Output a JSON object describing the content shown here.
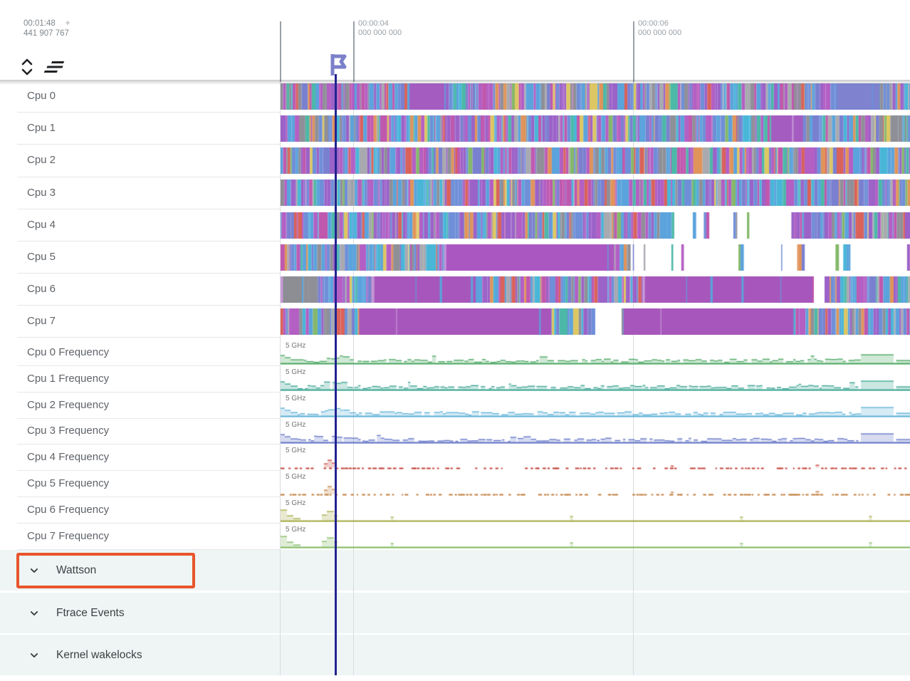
{
  "header": {
    "selection_time": "00:01:48",
    "selection_plus": "+",
    "selection_ns": "441 907 767",
    "ticks": [
      {
        "time": "00:00:04",
        "ns": "000 000 000"
      },
      {
        "time": "00:00:06",
        "ns": "000 000 000"
      }
    ]
  },
  "cpu_tracks": [
    {
      "label": "Cpu 0",
      "seed": 11,
      "pattern": {
        "blocks": [
          {
            "s": 0.205,
            "e": 0.262,
            "color": "#a55cc0"
          },
          {
            "s": 0.884,
            "e": 0.952,
            "color": "#7e82cf"
          }
        ],
        "sparse": [],
        "gaps": []
      }
    },
    {
      "label": "Cpu 1",
      "seed": 23,
      "pattern": {
        "blocks": [
          {
            "s": 0.78,
            "e": 0.83,
            "color": "#a55cc0"
          }
        ],
        "sparse": [],
        "gaps": []
      }
    },
    {
      "label": "Cpu 2",
      "seed": 37,
      "pattern": {
        "blocks": [],
        "sparse": [],
        "gaps": []
      }
    },
    {
      "label": "Cpu 3",
      "seed": 41,
      "pattern": {
        "blocks": [],
        "sparse": [],
        "gaps": []
      }
    },
    {
      "label": "Cpu 4",
      "seed": 53,
      "pattern": {
        "blocks": [],
        "sparse": [
          {
            "s": 0.615,
            "e": 0.83
          }
        ],
        "gaps": []
      }
    },
    {
      "label": "Cpu 5",
      "seed": 67,
      "pattern": {
        "blocks": [
          {
            "s": 0.26,
            "e": 0.53,
            "color": "#ab57c2"
          }
        ],
        "sparse": [
          {
            "s": 0.555,
            "e": 0.995
          }
        ],
        "gaps": []
      }
    },
    {
      "label": "Cpu 6",
      "seed": 79,
      "pattern": {
        "blocks": [
          {
            "s": 0.0,
            "e": 0.034,
            "color": "#8d8d94"
          },
          {
            "s": 0.145,
            "e": 0.31,
            "color": "#a757bb"
          },
          {
            "s": 0.575,
            "e": 0.845,
            "color": "#a757bb"
          }
        ],
        "sparse": [],
        "gaps": [
          {
            "s": 0.847,
            "e": 0.864
          }
        ]
      }
    },
    {
      "label": "Cpu 7",
      "seed": 97,
      "pattern": {
        "blocks": [
          {
            "s": 0.125,
            "e": 0.43,
            "color": "#a757bb"
          },
          {
            "s": 0.545,
            "e": 0.815,
            "color": "#a757bb"
          }
        ],
        "sparse": [],
        "gaps": [
          {
            "s": 0.5,
            "e": 0.542
          }
        ]
      }
    }
  ],
  "freq_tracks": [
    {
      "label": "Cpu 0 Frequency",
      "scale_label": "5 GHz",
      "color": "#44a35c",
      "style": "busy",
      "seed": 5
    },
    {
      "label": "Cpu 1 Frequency",
      "scale_label": "5 GHz",
      "color": "#31a08c",
      "style": "busy",
      "seed": 6
    },
    {
      "label": "Cpu 2 Frequency",
      "scale_label": "5 GHz",
      "color": "#58aed6",
      "style": "busy",
      "seed": 7
    },
    {
      "label": "Cpu 3 Frequency",
      "scale_label": "5 GHz",
      "color": "#5d6fc4",
      "style": "busy",
      "seed": 8
    },
    {
      "label": "Cpu 4 Frequency",
      "scale_label": "5 GHz",
      "color": "#c4443c",
      "style": "flat",
      "seed": 9
    },
    {
      "label": "Cpu 5 Frequency",
      "scale_label": "5 GHz",
      "color": "#c07e3e",
      "style": "flat",
      "seed": 10
    },
    {
      "label": "Cpu 6 Frequency",
      "scale_label": "5 GHz",
      "color": "#a2a83e",
      "style": "steps",
      "seed": 11
    },
    {
      "label": "Cpu 7 Frequency",
      "scale_label": "5 GHz",
      "color": "#7fb75e",
      "style": "steps",
      "seed": 12
    }
  ],
  "groups": [
    {
      "label": "Wattson",
      "highlighted": true
    },
    {
      "label": "Ftrace Events",
      "highlighted": false
    },
    {
      "label": "Kernel wakelocks",
      "highlighted": false
    }
  ],
  "colors": {
    "cursor": "#23238f",
    "flag": "#7c80ca",
    "highlight": "#e8552c",
    "grid": "#d9dbdf",
    "grid_header": "#9aa0a6",
    "group_bg": "#eff5f5",
    "palette": [
      {
        "c": "#5ba3dc",
        "w": 14
      },
      {
        "c": "#6f8fd8",
        "w": 8
      },
      {
        "c": "#49b6d8",
        "w": 5
      },
      {
        "c": "#9b62c8",
        "w": 12
      },
      {
        "c": "#b35fc4",
        "w": 10
      },
      {
        "c": "#c058ae",
        "w": 6
      },
      {
        "c": "#8f8f98",
        "w": 8
      },
      {
        "c": "#a9a9b0",
        "w": 4
      },
      {
        "c": "#e0945a",
        "w": 5
      },
      {
        "c": "#d9625a",
        "w": 4
      },
      {
        "c": "#4cb8a8",
        "w": 4
      },
      {
        "c": "#ddc763",
        "w": 3
      },
      {
        "c": "#85b86a",
        "w": 2
      },
      {
        "c": "#7a80d0",
        "w": 6
      }
    ]
  }
}
